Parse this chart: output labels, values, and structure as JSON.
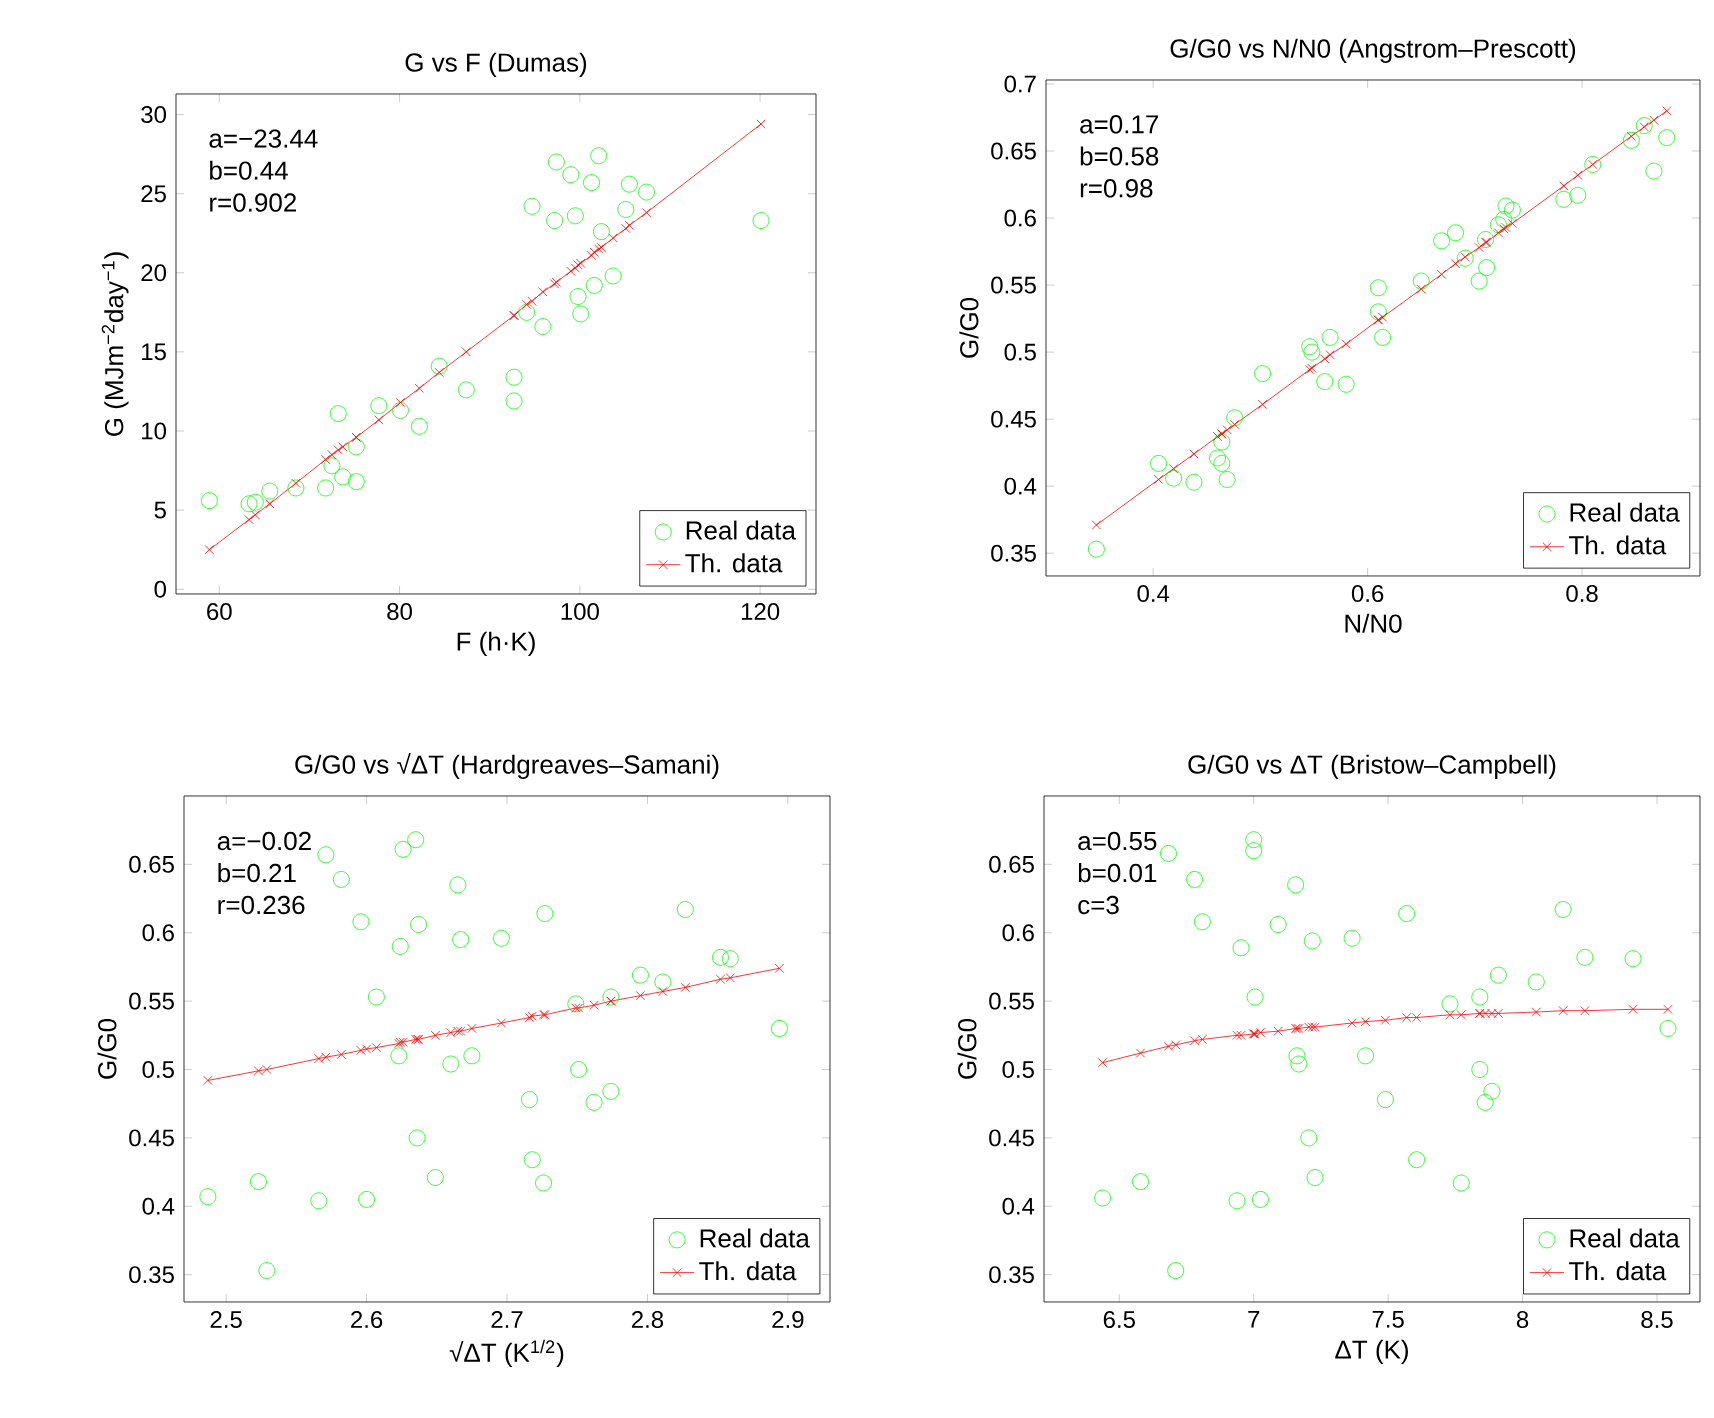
{
  "chart_data": [
    {
      "type": "scatter",
      "title": "G vs F (Dumas)",
      "xlabel": "F (h·K)",
      "ylabel": "G (MJm$^{−2}$day$^{−1}$)",
      "xlim": [
        55.2,
        126.2
      ],
      "ylim": [
        -0.3,
        31.3
      ],
      "xticks": [
        60,
        80,
        100,
        120
      ],
      "yticks": [
        0,
        5,
        10,
        15,
        20,
        25,
        30
      ],
      "annotations": [
        "a=−23.44",
        "b=0.44",
        "r=0.902"
      ],
      "legend": "bottom right",
      "series": [
        {
          "name": "Real data",
          "type": "scatter",
          "color": "#00ff00",
          "marker": "circle",
          "x": [
            58.9,
            63.3,
            64.0,
            65.6,
            68.5,
            71.8,
            73.2,
            72.5,
            73.7,
            75.2,
            75.2,
            77.7,
            80.1,
            82.2,
            84.4,
            87.4,
            92.7,
            92.7,
            94.1,
            95.9,
            94.7,
            97.4,
            97.2,
            99.0,
            99.5,
            101.3,
            102.1,
            102.4,
            105.5,
            107.4,
            105.1,
            99.8,
            100.1,
            101.6,
            103.7,
            120.1
          ],
          "values": [
            5.6,
            5.4,
            5.5,
            6.2,
            6.4,
            6.4,
            11.1,
            7.8,
            7.1,
            6.8,
            9.0,
            11.6,
            11.3,
            10.3,
            14.1,
            12.6,
            13.4,
            11.9,
            17.5,
            16.6,
            24.2,
            27.0,
            23.3,
            26.2,
            23.6,
            25.7,
            27.4,
            22.6,
            25.6,
            25.1,
            24.0,
            18.5,
            17.4,
            19.2,
            19.8,
            23.3
          ]
        },
        {
          "name": "Th. data",
          "type": "line",
          "color": "#ff0000",
          "marker": "cross",
          "x": [
            58.9,
            63.3,
            64.0,
            65.6,
            68.5,
            71.8,
            72.5,
            73.2,
            73.7,
            75.2,
            75.2,
            77.7,
            80.1,
            82.2,
            84.4,
            87.4,
            92.7,
            92.7,
            94.1,
            94.7,
            95.9,
            97.2,
            97.4,
            99.0,
            99.5,
            99.8,
            100.1,
            101.3,
            101.6,
            102.1,
            102.4,
            103.7,
            105.1,
            105.5,
            107.4,
            120.1
          ],
          "values": [
            2.5,
            4.4,
            4.7,
            5.4,
            6.7,
            8.2,
            8.5,
            8.8,
            9.0,
            9.6,
            9.6,
            10.7,
            11.8,
            12.7,
            13.7,
            15.0,
            17.3,
            17.3,
            18.0,
            18.2,
            18.8,
            19.3,
            19.4,
            20.1,
            20.3,
            20.5,
            20.6,
            21.1,
            21.3,
            21.5,
            21.6,
            22.2,
            22.8,
            23.0,
            23.8,
            29.4
          ]
        }
      ]
    },
    {
      "type": "scatter",
      "title": "G/G0 vs N/N0 (Angstrom–Prescott)",
      "xlabel": "N/N0",
      "ylabel": "G/G0",
      "xlim": [
        0.3,
        0.91
      ],
      "ylim": [
        0.333,
        0.703
      ],
      "xticks": [
        0.4,
        0.6,
        0.8
      ],
      "yticks": [
        0.35,
        0.4,
        0.45,
        0.5,
        0.55,
        0.6,
        0.65,
        0.7
      ],
      "annotations": [
        "a=0.17",
        "b=0.58",
        "r=0.98"
      ],
      "legend": "bottom right",
      "series": [
        {
          "name": "Real data",
          "type": "scatter",
          "color": "#00ff00",
          "marker": "circle",
          "x": [
            0.347,
            0.405,
            0.419,
            0.438,
            0.46,
            0.464,
            0.469,
            0.464,
            0.476,
            0.502,
            0.546,
            0.548,
            0.565,
            0.56,
            0.58,
            0.61,
            0.61,
            0.614,
            0.65,
            0.669,
            0.682,
            0.691,
            0.704,
            0.711,
            0.71,
            0.722,
            0.729,
            0.735,
            0.727,
            0.783,
            0.796,
            0.81,
            0.846,
            0.858,
            0.879,
            0.867
          ],
          "values": [
            0.353,
            0.417,
            0.406,
            0.403,
            0.421,
            0.417,
            0.405,
            0.433,
            0.451,
            0.484,
            0.504,
            0.5,
            0.511,
            0.478,
            0.476,
            0.548,
            0.53,
            0.511,
            0.553,
            0.583,
            0.589,
            0.57,
            0.553,
            0.563,
            0.584,
            0.595,
            0.609,
            0.606,
            0.599,
            0.614,
            0.617,
            0.64,
            0.658,
            0.669,
            0.66,
            0.635
          ]
        },
        {
          "name": "Th. data",
          "type": "line",
          "color": "#ff0000",
          "marker": "cross",
          "x": [
            0.347,
            0.405,
            0.419,
            0.438,
            0.46,
            0.464,
            0.464,
            0.469,
            0.476,
            0.502,
            0.546,
            0.548,
            0.56,
            0.565,
            0.58,
            0.61,
            0.61,
            0.614,
            0.65,
            0.669,
            0.682,
            0.691,
            0.704,
            0.71,
            0.711,
            0.722,
            0.727,
            0.729,
            0.735,
            0.783,
            0.796,
            0.81,
            0.846,
            0.858,
            0.867,
            0.879
          ],
          "values": [
            0.371,
            0.405,
            0.413,
            0.424,
            0.437,
            0.439,
            0.439,
            0.442,
            0.446,
            0.461,
            0.487,
            0.488,
            0.495,
            0.498,
            0.506,
            0.524,
            0.524,
            0.526,
            0.547,
            0.558,
            0.566,
            0.571,
            0.578,
            0.582,
            0.582,
            0.589,
            0.592,
            0.593,
            0.596,
            0.624,
            0.632,
            0.64,
            0.661,
            0.668,
            0.673,
            0.68
          ]
        }
      ]
    },
    {
      "type": "scatter",
      "title": "G/G0 vs √ΔT (Hardgreaves–Samani)",
      "xlabel": "√ΔT (K$^{1/2}$)",
      "ylabel": "G/G0",
      "xlim": [
        2.47,
        2.93
      ],
      "ylim": [
        0.33,
        0.7
      ],
      "xticks": [
        2.5,
        2.6,
        2.7,
        2.8,
        2.9
      ],
      "yticks": [
        0.35,
        0.4,
        0.45,
        0.5,
        0.55,
        0.6,
        0.65
      ],
      "annotations": [
        "a=−0.02",
        "b=0.21",
        "r=0.236"
      ],
      "legend": "bottom right",
      "series": [
        {
          "name": "Real data",
          "type": "scatter",
          "color": "#00ff00",
          "marker": "circle",
          "x": [
            2.487,
            2.523,
            2.529,
            2.566,
            2.6,
            2.571,
            2.582,
            2.596,
            2.607,
            2.624,
            2.623,
            2.626,
            2.635,
            2.637,
            2.636,
            2.649,
            2.66,
            2.665,
            2.667,
            2.675,
            2.696,
            2.716,
            2.718,
            2.726,
            2.727,
            2.749,
            2.751,
            2.762,
            2.774,
            2.774,
            2.795,
            2.811,
            2.827,
            2.852,
            2.859,
            2.894
          ],
          "values": [
            0.407,
            0.418,
            0.353,
            0.404,
            0.405,
            0.657,
            0.639,
            0.608,
            0.553,
            0.59,
            0.51,
            0.661,
            0.668,
            0.606,
            0.45,
            0.421,
            0.504,
            0.635,
            0.595,
            0.51,
            0.596,
            0.478,
            0.434,
            0.417,
            0.614,
            0.548,
            0.5,
            0.476,
            0.484,
            0.553,
            0.569,
            0.564,
            0.617,
            0.582,
            0.581,
            0.53
          ]
        },
        {
          "name": "Th. data",
          "type": "line",
          "color": "#ff0000",
          "marker": "cross",
          "x": [
            2.487,
            2.523,
            2.529,
            2.566,
            2.571,
            2.582,
            2.596,
            2.6,
            2.607,
            2.623,
            2.624,
            2.626,
            2.635,
            2.636,
            2.637,
            2.649,
            2.66,
            2.665,
            2.667,
            2.675,
            2.696,
            2.716,
            2.718,
            2.726,
            2.727,
            2.749,
            2.751,
            2.762,
            2.774,
            2.774,
            2.795,
            2.811,
            2.827,
            2.852,
            2.859,
            2.894
          ],
          "values": [
            0.492,
            0.499,
            0.5,
            0.508,
            0.509,
            0.511,
            0.514,
            0.515,
            0.516,
            0.519,
            0.52,
            0.52,
            0.522,
            0.522,
            0.522,
            0.525,
            0.527,
            0.528,
            0.528,
            0.53,
            0.534,
            0.538,
            0.539,
            0.54,
            0.54,
            0.545,
            0.545,
            0.547,
            0.55,
            0.55,
            0.554,
            0.557,
            0.56,
            0.566,
            0.567,
            0.574
          ]
        }
      ]
    },
    {
      "type": "scatter",
      "title": "G/G0 vs ΔT (Bristow–Campbell)",
      "xlabel": "ΔT (K)",
      "ylabel": "G/G0",
      "xlim": [
        6.22,
        8.66
      ],
      "ylim": [
        0.33,
        0.7
      ],
      "xticks": [
        6.5,
        7,
        7.5,
        8,
        8.5
      ],
      "yticks": [
        0.35,
        0.4,
        0.45,
        0.5,
        0.55,
        0.6,
        0.65
      ],
      "annotations": [
        "a=0.55",
        "b=0.01",
        "c=3"
      ],
      "legend": "bottom right",
      "series": [
        {
          "name": "Real data",
          "type": "scatter",
          "color": "#00ff00",
          "marker": "circle",
          "x": [
            6.438,
            6.579,
            6.71,
            6.938,
            7.025,
            6.683,
            6.78,
            6.809,
            6.953,
            7.0,
            7.0,
            7.005,
            7.091,
            7.156,
            7.161,
            7.168,
            7.205,
            7.218,
            7.228,
            7.366,
            7.416,
            7.49,
            7.569,
            7.606,
            7.73,
            7.772,
            7.841,
            7.841,
            7.861,
            7.886,
            7.91,
            8.051,
            8.151,
            8.232,
            8.411,
            8.541
          ],
          "values": [
            0.406,
            0.418,
            0.353,
            0.404,
            0.405,
            0.658,
            0.639,
            0.608,
            0.589,
            0.668,
            0.66,
            0.553,
            0.606,
            0.635,
            0.51,
            0.504,
            0.45,
            0.594,
            0.421,
            0.596,
            0.51,
            0.478,
            0.614,
            0.434,
            0.548,
            0.417,
            0.553,
            0.5,
            0.476,
            0.484,
            0.569,
            0.564,
            0.617,
            0.582,
            0.581,
            0.53
          ]
        },
        {
          "name": "Th. data",
          "type": "line",
          "color": "#ff0000",
          "marker": "cross",
          "x": [
            6.438,
            6.579,
            6.683,
            6.71,
            6.78,
            6.809,
            6.938,
            6.953,
            7.0,
            7.0,
            7.005,
            7.025,
            7.091,
            7.156,
            7.161,
            7.168,
            7.205,
            7.218,
            7.228,
            7.366,
            7.416,
            7.49,
            7.569,
            7.606,
            7.73,
            7.772,
            7.841,
            7.841,
            7.861,
            7.886,
            7.91,
            8.051,
            8.151,
            8.232,
            8.411,
            8.541
          ],
          "values": [
            0.505,
            0.512,
            0.517,
            0.518,
            0.521,
            0.522,
            0.525,
            0.525,
            0.526,
            0.526,
            0.526,
            0.527,
            0.528,
            0.53,
            0.53,
            0.53,
            0.531,
            0.531,
            0.531,
            0.534,
            0.535,
            0.536,
            0.538,
            0.538,
            0.54,
            0.54,
            0.541,
            0.541,
            0.541,
            0.541,
            0.541,
            0.542,
            0.543,
            0.543,
            0.544,
            0.544
          ]
        }
      ]
    }
  ]
}
